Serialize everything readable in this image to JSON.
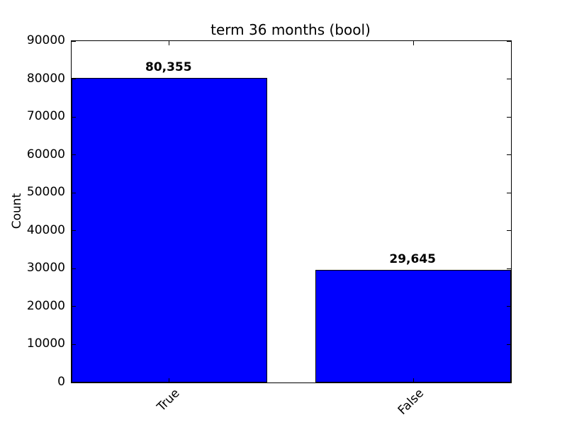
{
  "figure": {
    "background_color": "#ffffff",
    "text_color": "#000000"
  },
  "chart_data": {
    "type": "bar",
    "title": "term 36 months (bool)",
    "xlabel": "",
    "ylabel": "Count",
    "categories": [
      "True",
      "False"
    ],
    "values": [
      80355,
      29645
    ],
    "value_labels": [
      "80,355",
      "29,645"
    ],
    "ylim": [
      0,
      90000
    ],
    "ytick_step": 10000,
    "ytick_labels": [
      "0",
      "10000",
      "20000",
      "30000",
      "40000",
      "50000",
      "60000",
      "70000",
      "80000",
      "90000"
    ],
    "xtick_rotation_deg": 45,
    "bar_color": "#0000ff",
    "bar_edge_color": "#000000",
    "grid": false,
    "legend": null
  }
}
